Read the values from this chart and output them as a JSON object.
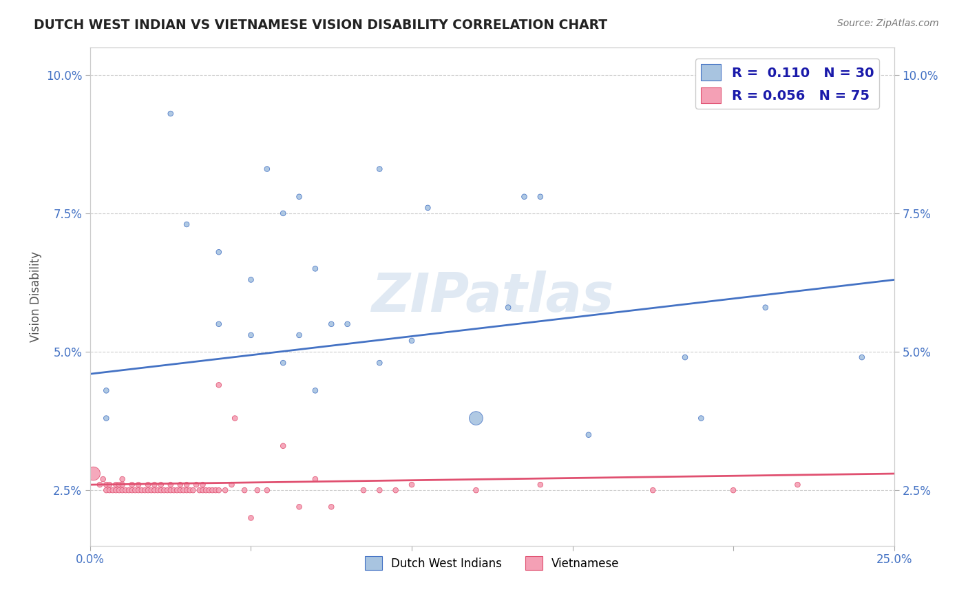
{
  "title": "DUTCH WEST INDIAN VS VIETNAMESE VISION DISABILITY CORRELATION CHART",
  "source_text": "Source: ZipAtlas.com",
  "xlabel": "",
  "ylabel": "Vision Disability",
  "xlim": [
    0.0,
    0.25
  ],
  "ylim": [
    0.015,
    0.105
  ],
  "xticks": [
    0.0,
    0.05,
    0.1,
    0.15,
    0.2,
    0.25
  ],
  "xticklabels": [
    "0.0%",
    "",
    "",
    "",
    "",
    "25.0%"
  ],
  "yticks": [
    0.025,
    0.05,
    0.075,
    0.1
  ],
  "yticklabels": [
    "2.5%",
    "5.0%",
    "7.5%",
    "10.0%"
  ],
  "dutch_color": "#a8c4e0",
  "vietnamese_color": "#f4a0b5",
  "dutch_line_color": "#4472c4",
  "vietnamese_line_color": "#e05070",
  "legend_dutch_r": "0.110",
  "legend_dutch_n": "30",
  "legend_viet_r": "0.056",
  "legend_viet_n": "75",
  "watermark": "ZIPatlas",
  "dutch_x": [
    0.005,
    0.025,
    0.03,
    0.04,
    0.04,
    0.05,
    0.055,
    0.06,
    0.065,
    0.07,
    0.075,
    0.09,
    0.1,
    0.105,
    0.13,
    0.135,
    0.14,
    0.155,
    0.185,
    0.19,
    0.21,
    0.24,
    0.005,
    0.05,
    0.06,
    0.065,
    0.07,
    0.08,
    0.09,
    0.12
  ],
  "dutch_y": [
    0.043,
    0.093,
    0.073,
    0.068,
    0.055,
    0.063,
    0.083,
    0.075,
    0.078,
    0.065,
    0.055,
    0.083,
    0.052,
    0.076,
    0.058,
    0.078,
    0.078,
    0.035,
    0.049,
    0.038,
    0.058,
    0.049,
    0.038,
    0.053,
    0.048,
    0.053,
    0.043,
    0.055,
    0.048,
    0.038
  ],
  "dutch_size": [
    30,
    30,
    30,
    30,
    30,
    30,
    30,
    30,
    30,
    30,
    30,
    30,
    30,
    30,
    30,
    30,
    30,
    30,
    30,
    30,
    30,
    30,
    30,
    30,
    30,
    30,
    30,
    30,
    30,
    200
  ],
  "viet_x": [
    0.001,
    0.003,
    0.004,
    0.005,
    0.005,
    0.006,
    0.006,
    0.007,
    0.008,
    0.008,
    0.009,
    0.009,
    0.01,
    0.01,
    0.01,
    0.011,
    0.012,
    0.013,
    0.013,
    0.014,
    0.015,
    0.015,
    0.016,
    0.017,
    0.018,
    0.018,
    0.019,
    0.02,
    0.02,
    0.021,
    0.022,
    0.022,
    0.023,
    0.024,
    0.025,
    0.025,
    0.026,
    0.027,
    0.028,
    0.028,
    0.029,
    0.03,
    0.03,
    0.031,
    0.032,
    0.033,
    0.034,
    0.035,
    0.035,
    0.036,
    0.037,
    0.038,
    0.039,
    0.04,
    0.04,
    0.042,
    0.044,
    0.045,
    0.048,
    0.05,
    0.052,
    0.055,
    0.06,
    0.065,
    0.07,
    0.075,
    0.085,
    0.09,
    0.095,
    0.1,
    0.12,
    0.14,
    0.175,
    0.2,
    0.22
  ],
  "viet_y": [
    0.028,
    0.026,
    0.027,
    0.025,
    0.026,
    0.025,
    0.026,
    0.025,
    0.025,
    0.026,
    0.025,
    0.026,
    0.025,
    0.026,
    0.027,
    0.025,
    0.025,
    0.025,
    0.026,
    0.025,
    0.025,
    0.026,
    0.025,
    0.025,
    0.025,
    0.026,
    0.025,
    0.025,
    0.026,
    0.025,
    0.025,
    0.026,
    0.025,
    0.025,
    0.025,
    0.026,
    0.025,
    0.025,
    0.025,
    0.026,
    0.025,
    0.025,
    0.026,
    0.025,
    0.025,
    0.026,
    0.025,
    0.025,
    0.026,
    0.025,
    0.025,
    0.025,
    0.025,
    0.025,
    0.044,
    0.025,
    0.026,
    0.038,
    0.025,
    0.02,
    0.025,
    0.025,
    0.033,
    0.022,
    0.027,
    0.022,
    0.025,
    0.025,
    0.025,
    0.026,
    0.025,
    0.026,
    0.025,
    0.025,
    0.026
  ],
  "viet_size": [
    200,
    30,
    30,
    30,
    30,
    30,
    30,
    30,
    30,
    30,
    30,
    30,
    30,
    30,
    30,
    30,
    30,
    30,
    30,
    30,
    30,
    30,
    30,
    30,
    30,
    30,
    30,
    30,
    30,
    30,
    30,
    30,
    30,
    30,
    30,
    30,
    30,
    30,
    30,
    30,
    30,
    30,
    30,
    30,
    30,
    30,
    30,
    30,
    30,
    30,
    30,
    30,
    30,
    30,
    30,
    30,
    30,
    30,
    30,
    30,
    30,
    30,
    30,
    30,
    30,
    30,
    30,
    30,
    30,
    30,
    30,
    30,
    30,
    30,
    30
  ],
  "dutch_line_start_y": 0.046,
  "dutch_line_end_y": 0.063,
  "viet_line_start_y": 0.026,
  "viet_line_end_y": 0.028
}
